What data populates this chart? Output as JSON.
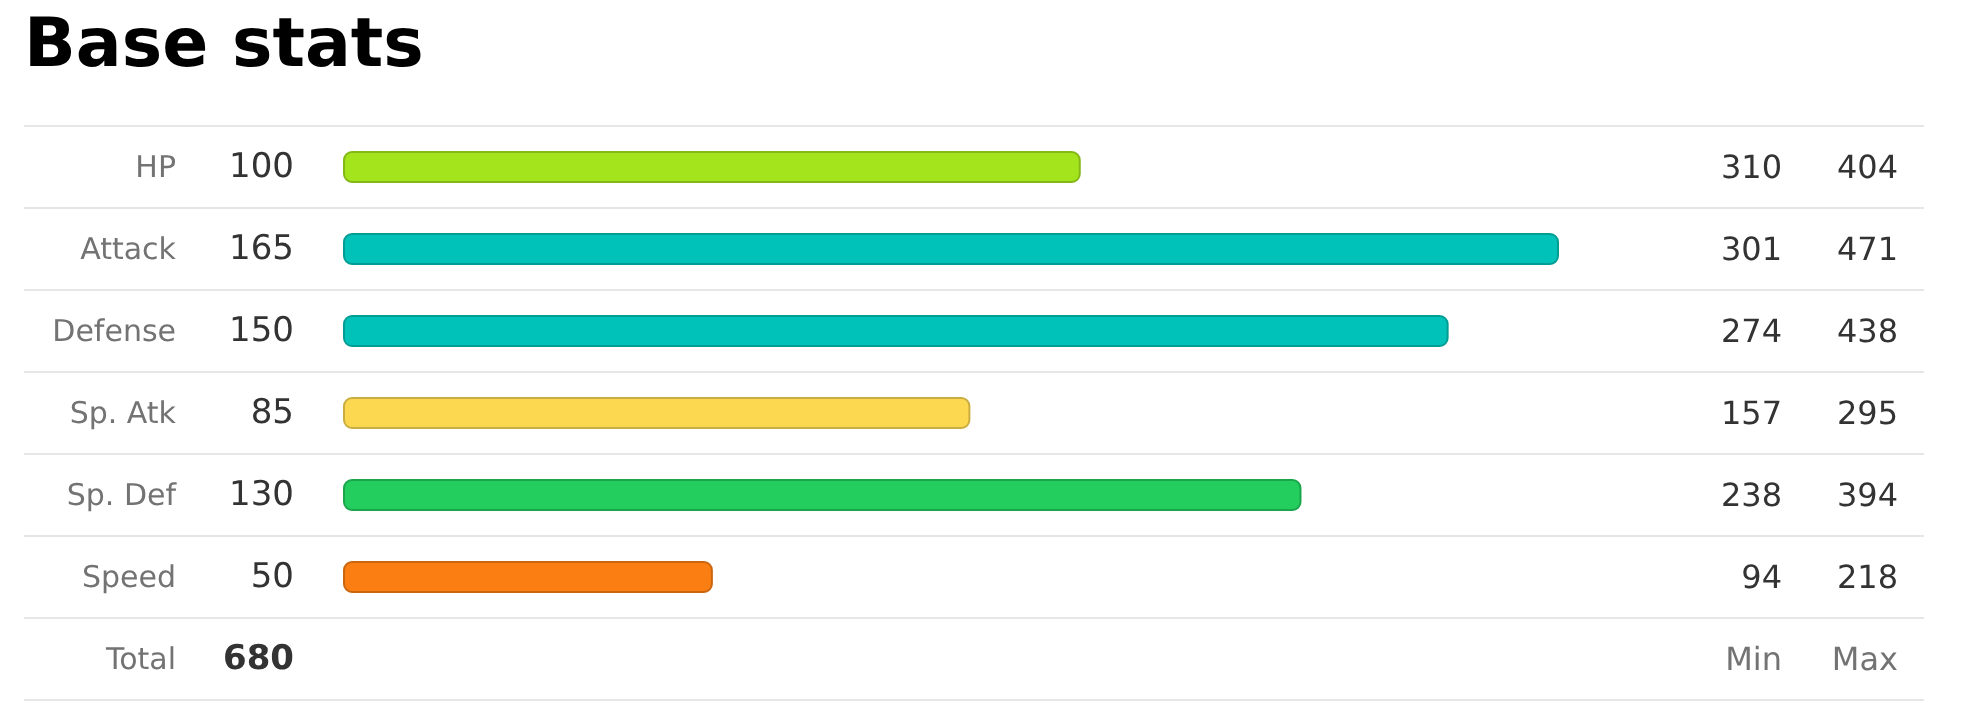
{
  "chart_data": {
    "type": "bar",
    "orientation": "horizontal",
    "title": "Base stats",
    "categories": [
      "HP",
      "Attack",
      "Defense",
      "Sp. Atk",
      "Sp. Def",
      "Speed",
      "Total"
    ],
    "values": [
      100,
      165,
      150,
      85,
      130,
      50,
      null
    ],
    "value_labels": [
      "100",
      "165",
      "150",
      "85",
      "130",
      "50",
      "680"
    ],
    "colors": [
      "#a3e41c",
      "#00c2b8",
      "#00c2b8",
      "#fcd850",
      "#23cd5e",
      "#fb7e13",
      null
    ],
    "tick_labels": "y",
    "grid": "y",
    "annotations": [
      "310",
      "404",
      "301",
      "471",
      "274",
      "438",
      "157",
      "295",
      "238",
      "394",
      "94",
      "218",
      "Min",
      "Max"
    ]
  }
}
